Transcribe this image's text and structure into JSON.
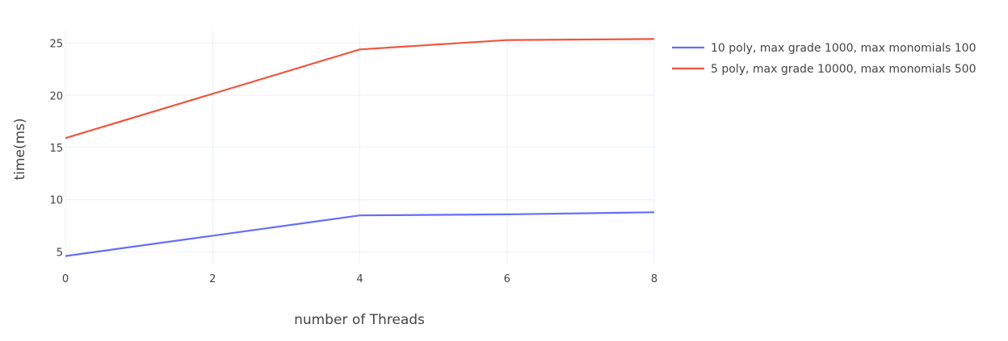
{
  "chart_data": {
    "type": "line",
    "title": "",
    "xlabel": "number of Threads",
    "ylabel": "time(ms)",
    "xlim": [
      0,
      8
    ],
    "ylim": [
      3.8,
      26.2
    ],
    "xticks": [
      0,
      2,
      4,
      6,
      8
    ],
    "yticks": [
      5,
      10,
      15,
      20,
      25
    ],
    "grid": true,
    "legend_position": "top-right",
    "x": [
      0,
      4,
      6,
      8
    ],
    "series": [
      {
        "name": "10 poly, max grade 1000, max monomials 100",
        "color": "#636efa",
        "values": [
          4.6,
          8.5,
          8.6,
          8.8
        ]
      },
      {
        "name": "5 poly, max grade 10000, max monomials 500",
        "color": "#ef553b",
        "values": [
          15.9,
          24.4,
          25.3,
          25.4
        ]
      }
    ]
  }
}
